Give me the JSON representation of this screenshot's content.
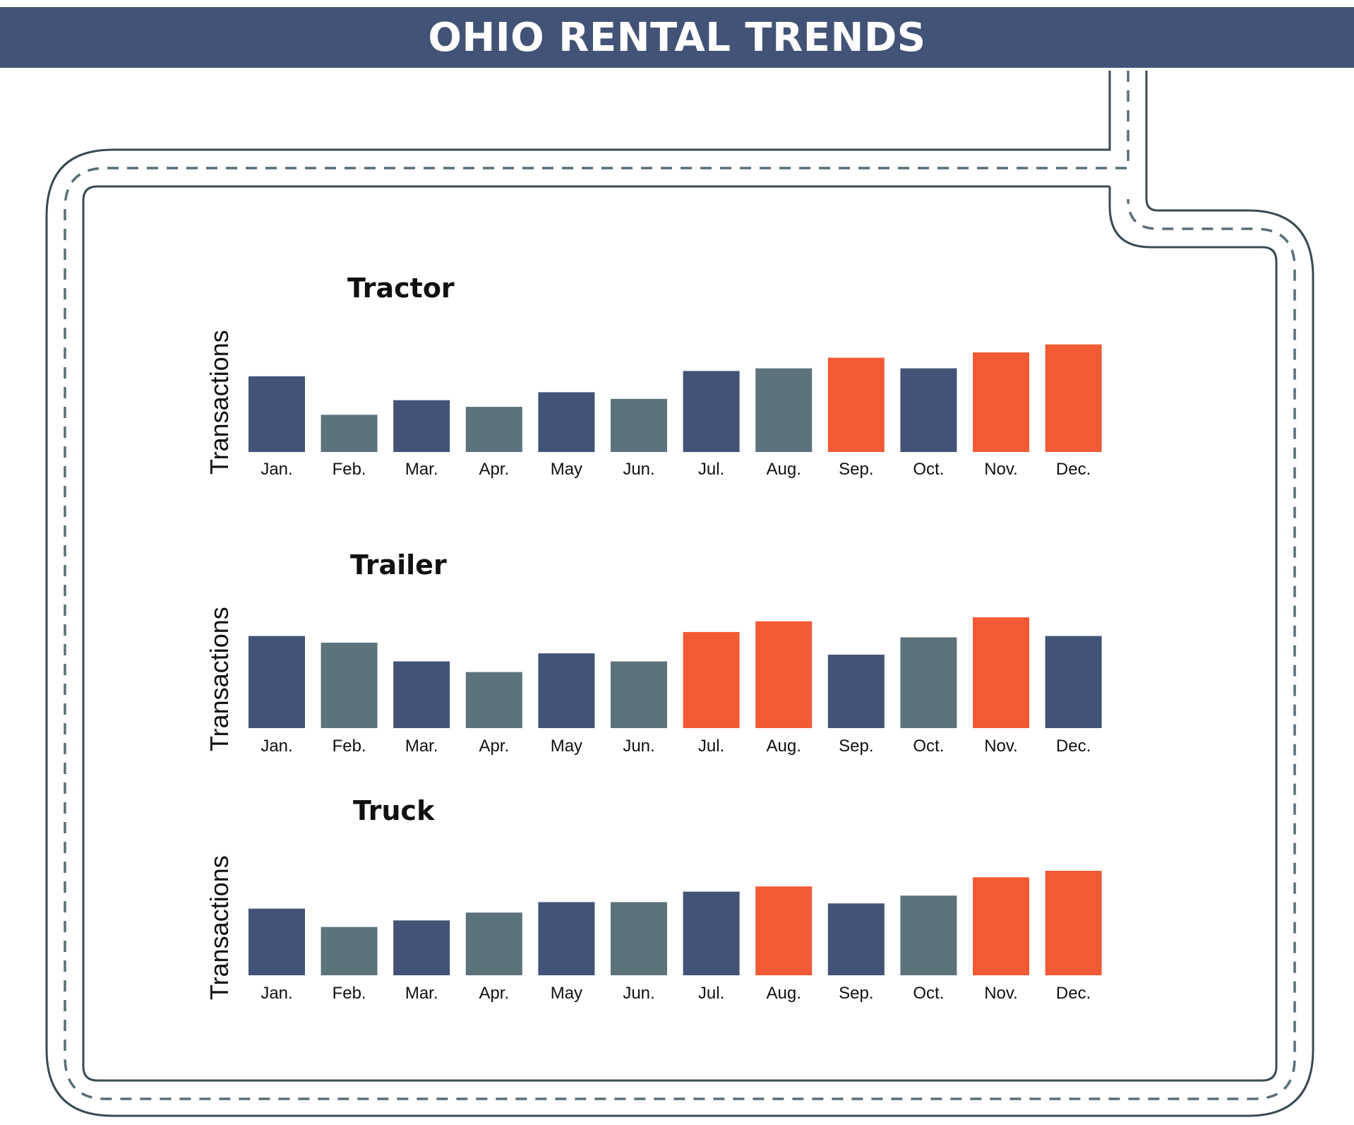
{
  "header": {
    "title": "OHIO RENTAL TRENDS"
  },
  "colors": {
    "navy": "#425377",
    "slate": "#5d737c",
    "orange": "#f15a35",
    "banner": "#425377",
    "road": "#3a4a52"
  },
  "chart_data": [
    {
      "type": "bar",
      "title": "Tractor",
      "ylabel": "Transactions",
      "xlabel": "",
      "categories": [
        "Jan.",
        "Feb.",
        "Mar.",
        "Apr.",
        "May",
        "Jun.",
        "Jul.",
        "Aug.",
        "Sep.",
        "Oct.",
        "Nov.",
        "Dec."
      ],
      "values": [
        57,
        28,
        39,
        34,
        45,
        40,
        61,
        63,
        71,
        63,
        75,
        81
      ],
      "bar_colors": [
        "navy",
        "slate",
        "navy",
        "slate",
        "navy",
        "slate",
        "navy",
        "slate",
        "orange",
        "navy",
        "orange",
        "orange"
      ],
      "ylim": [
        0,
        100
      ]
    },
    {
      "type": "bar",
      "title": "Trailer",
      "ylabel": "Transactions",
      "xlabel": "",
      "categories": [
        "Jan.",
        "Feb.",
        "Mar.",
        "Apr.",
        "May",
        "Jun.",
        "Jul.",
        "Aug.",
        "Sep.",
        "Oct.",
        "Nov.",
        "Dec."
      ],
      "values": [
        69,
        64,
        50,
        42,
        56,
        50,
        72,
        80,
        55,
        68,
        83,
        69
      ],
      "bar_colors": [
        "navy",
        "slate",
        "navy",
        "slate",
        "navy",
        "slate",
        "orange",
        "orange",
        "navy",
        "slate",
        "orange",
        "navy"
      ],
      "ylim": [
        0,
        100
      ]
    },
    {
      "type": "bar",
      "title": "Truck",
      "ylabel": "Transactions",
      "xlabel": "",
      "categories": [
        "Jan.",
        "Feb.",
        "Mar.",
        "Apr.",
        "May",
        "Jun.",
        "Jul.",
        "Aug.",
        "Sep.",
        "Oct.",
        "Nov.",
        "Dec."
      ],
      "values": [
        51,
        37,
        42,
        48,
        56,
        56,
        64,
        68,
        55,
        61,
        75,
        80
      ],
      "bar_colors": [
        "navy",
        "slate",
        "navy",
        "slate",
        "navy",
        "slate",
        "navy",
        "orange",
        "navy",
        "slate",
        "orange",
        "orange"
      ],
      "ylim": [
        0,
        100
      ]
    }
  ]
}
